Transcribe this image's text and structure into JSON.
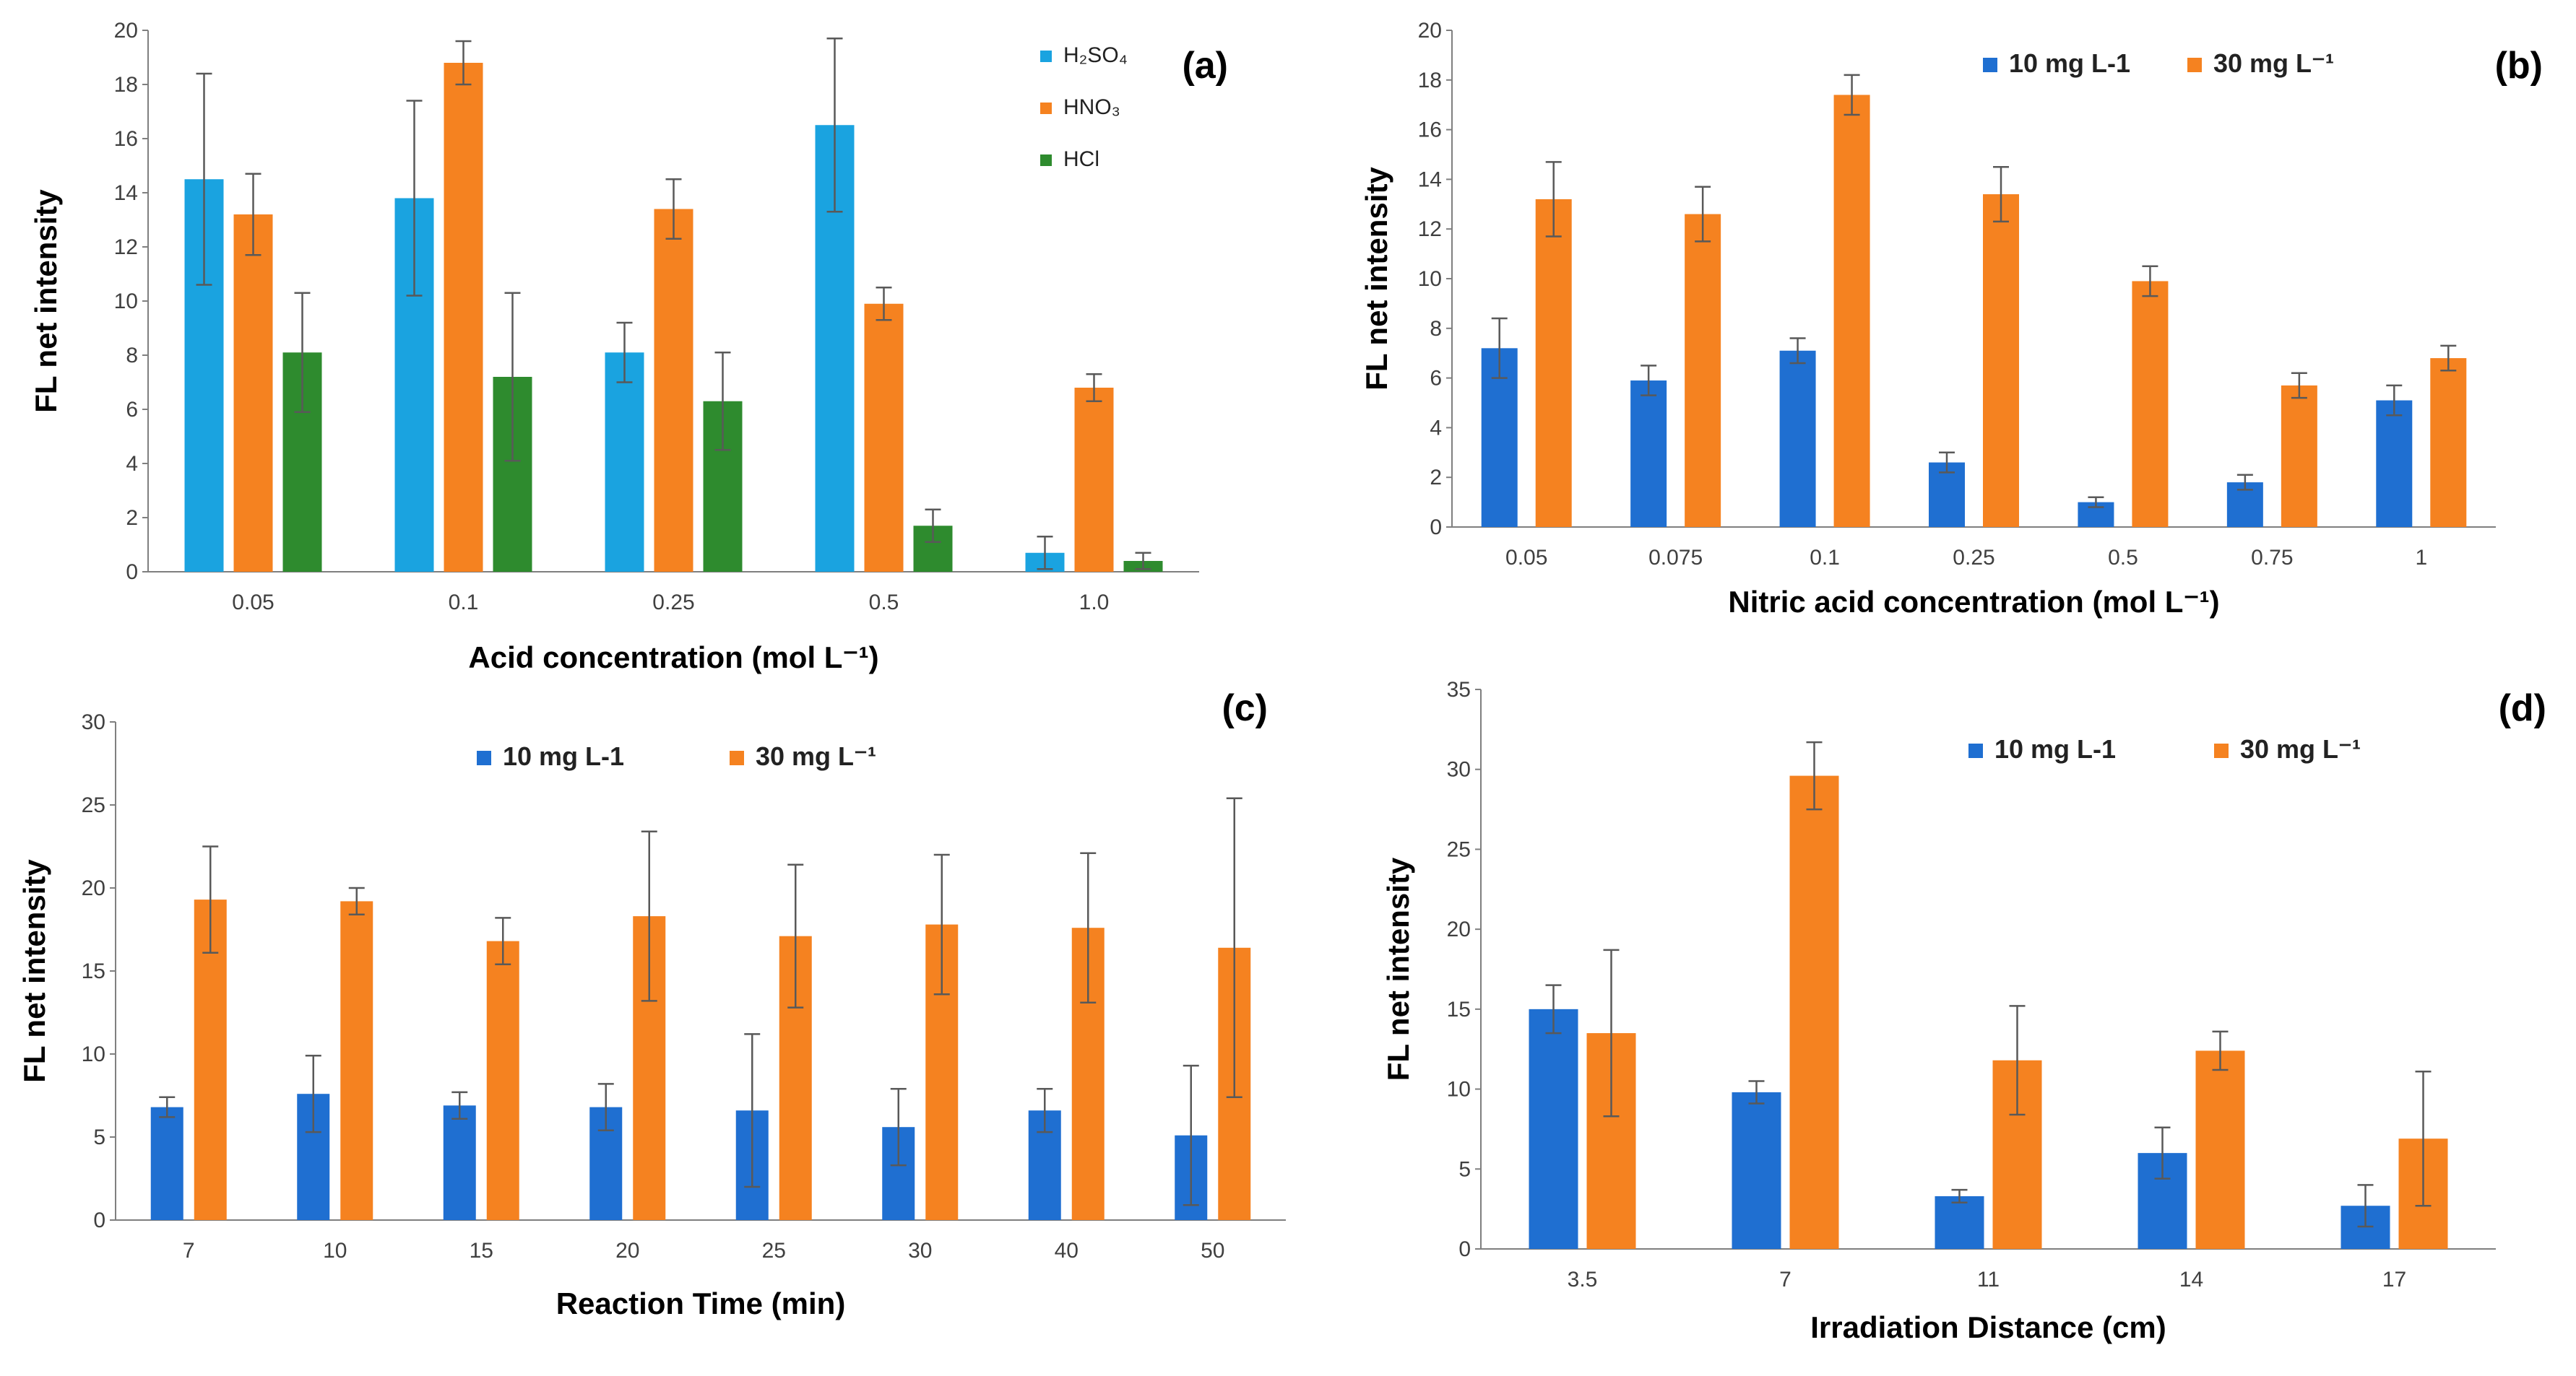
{
  "chart_data": [
    {
      "panel": "(a)",
      "type": "bar",
      "xlabel": "Acid concentration (mol L⁻¹)",
      "ylabel": "FL net intensity",
      "ylim": [
        0,
        20
      ],
      "yticks": [
        0,
        2,
        4,
        6,
        8,
        10,
        12,
        14,
        16,
        18,
        20
      ],
      "grid": false,
      "legend": "top-right, vertical",
      "categories": [
        "0.05",
        "0.1",
        "0.25",
        "0.5",
        "1.0"
      ],
      "series": [
        {
          "name": "H₂SO₄",
          "color": "#1aa3e0",
          "values": [
            14.5,
            13.8,
            8.1,
            16.5,
            0.7
          ],
          "errors": [
            3.9,
            3.6,
            1.1,
            3.2,
            0.6
          ]
        },
        {
          "name": "HNO₃",
          "color": "#f58220",
          "values": [
            13.2,
            18.8,
            13.4,
            9.9,
            6.8
          ],
          "errors": [
            1.5,
            0.8,
            1.1,
            0.6,
            0.5
          ]
        },
        {
          "name": "HCl",
          "color": "#2e8b2e",
          "values": [
            8.1,
            7.2,
            6.3,
            1.7,
            0.4
          ],
          "errors": [
            2.2,
            3.1,
            1.8,
            0.6,
            0.3
          ]
        }
      ]
    },
    {
      "panel": "(b)",
      "type": "bar",
      "xlabel": "Nitric acid concentration (mol L⁻¹)",
      "ylabel": "FL net intensity",
      "ylim": [
        0,
        20
      ],
      "yticks": [
        0,
        2,
        4,
        6,
        8,
        10,
        12,
        14,
        16,
        18,
        20
      ],
      "grid": false,
      "legend": "top-center, horizontal",
      "categories": [
        "0.05",
        "0.075",
        "0.1",
        "0.25",
        "0.5",
        "0.75",
        "1"
      ],
      "series": [
        {
          "name": "10 mg L-1",
          "color": "#1f6fd1",
          "values": [
            7.2,
            5.9,
            7.1,
            2.6,
            1.0,
            1.8,
            5.1
          ],
          "errors": [
            1.2,
            0.6,
            0.5,
            0.4,
            0.2,
            0.3,
            0.6
          ]
        },
        {
          "name": "30 mg L⁻¹",
          "color": "#f58220",
          "values": [
            13.2,
            12.6,
            17.4,
            13.4,
            9.9,
            5.7,
            6.8
          ],
          "errors": [
            1.5,
            1.1,
            0.8,
            1.1,
            0.6,
            0.5,
            0.5
          ]
        }
      ]
    },
    {
      "panel": "(c)",
      "type": "bar",
      "xlabel": "Reaction Time (min)",
      "ylabel": "FL net intensity",
      "ylim": [
        0,
        30
      ],
      "yticks": [
        0,
        5,
        10,
        15,
        20,
        25,
        30
      ],
      "grid": false,
      "legend": "top-center, horizontal",
      "categories": [
        "7",
        "10",
        "15",
        "20",
        "25",
        "30",
        "40",
        "50"
      ],
      "series": [
        {
          "name": "10 mg L-1",
          "color": "#1f6fd1",
          "values": [
            6.8,
            7.6,
            6.9,
            6.8,
            6.6,
            5.6,
            6.6,
            5.1
          ],
          "errors": [
            0.6,
            2.3,
            0.8,
            1.4,
            4.6,
            2.3,
            1.3,
            4.2
          ]
        },
        {
          "name": "30 mg L⁻¹",
          "color": "#f58220",
          "values": [
            19.3,
            19.2,
            16.8,
            18.3,
            17.1,
            17.8,
            17.6,
            16.4
          ],
          "errors": [
            3.2,
            0.8,
            1.4,
            5.1,
            4.3,
            4.2,
            4.5,
            9.0
          ]
        }
      ]
    },
    {
      "panel": "(d)",
      "type": "bar",
      "xlabel": "Irradiation Distance (cm)",
      "ylabel": "FL net intensity",
      "ylim": [
        0,
        35
      ],
      "yticks": [
        0,
        5,
        10,
        15,
        20,
        25,
        30,
        35
      ],
      "grid": false,
      "legend": "top-center, horizontal",
      "categories": [
        "3.5",
        "7",
        "11",
        "14",
        "17"
      ],
      "series": [
        {
          "name": "10 mg L-1",
          "color": "#1f6fd1",
          "values": [
            15.0,
            9.8,
            3.3,
            6.0,
            2.7
          ],
          "errors": [
            1.5,
            0.7,
            0.4,
            1.6,
            1.3
          ]
        },
        {
          "name": "30 mg L⁻¹",
          "color": "#f58220",
          "values": [
            13.5,
            29.6,
            11.8,
            12.4,
            6.9
          ],
          "errors": [
            5.2,
            2.1,
            3.4,
            1.2,
            4.2
          ]
        }
      ]
    }
  ]
}
